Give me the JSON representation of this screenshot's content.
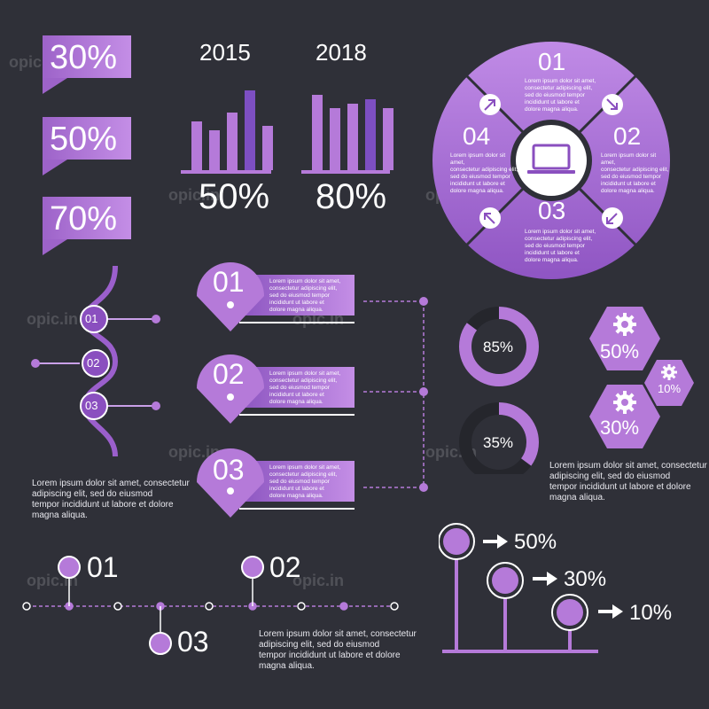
{
  "watermark": "opic.in",
  "tags": [
    "30%",
    "50%",
    "70%"
  ],
  "bars": {
    "left": {
      "year": "2015",
      "percent": "50%",
      "bar_heights": [
        0.55,
        0.45,
        0.65,
        0.9,
        0.5
      ]
    },
    "right": {
      "year": "2018",
      "percent": "80%",
      "bar_heights": [
        0.85,
        0.7,
        0.75,
        0.8,
        0.7
      ]
    }
  },
  "circle": {
    "center_icon": "laptop-icon",
    "segments": [
      {
        "num": "01",
        "text": [
          "Lorem ipsum dolor sit amet,",
          "consectetur adipiscing elit,",
          "sed do eiusmod tempor",
          "incididunt ut labore et",
          "dolore magna aliqua."
        ]
      },
      {
        "num": "02",
        "text": [
          "Lorem ipsum dolor sit amet,",
          "consectetur adipiscing elit,",
          "sed do eiusmod tempor",
          "incididunt ut labore et",
          "dolore magna aliqua."
        ]
      },
      {
        "num": "03",
        "text": [
          "Lorem ipsum dolor sit amet,",
          "consectetur adipiscing elit,",
          "sed do eiusmod tempor",
          "incididunt ut labore et",
          "dolore magna aliqua."
        ]
      },
      {
        "num": "04",
        "text": [
          "Lorem ipsum dolor sit amet,",
          "consectetur adipiscing elit,",
          "sed do eiusmod tempor",
          "incididunt ut labore et",
          "dolore magna aliqua."
        ]
      }
    ]
  },
  "snake": {
    "items": [
      "01",
      "02",
      "03"
    ],
    "text": [
      "Lorem ipsum dolor sit amet, consectetur",
      "adipiscing elit, sed do eiusmod",
      "tempor incididunt ut labore et dolore",
      "magna aliqua."
    ]
  },
  "pins": [
    {
      "num": "01",
      "text": [
        "Lorem ipsum dolor sit amet,",
        "consectetur adipiscing elit,",
        "sed do eiusmod tempor",
        "incididunt ut labore et",
        "dolore magna aliqua."
      ]
    },
    {
      "num": "02",
      "text": [
        "Lorem ipsum dolor sit amet,",
        "consectetur adipiscing elit,",
        "sed do eiusmod tempor",
        "incididunt ut labore et",
        "dolore magna aliqua."
      ]
    },
    {
      "num": "03",
      "text": [
        "Lorem ipsum dolor sit amet,",
        "consectetur adipiscing elit,",
        "sed do eiusmod tempor",
        "incididunt ut labore et",
        "dolore magna aliqua."
      ]
    }
  ],
  "donuts": [
    {
      "label": "85%",
      "fraction": 0.85
    },
    {
      "label": "35%",
      "fraction": 0.35
    }
  ],
  "hexes": [
    {
      "label": "50%",
      "icon": "gear-icon"
    },
    {
      "label": "10%",
      "icon": "gear-icon"
    },
    {
      "label": "30%",
      "icon": "gear-icon"
    }
  ],
  "hex_text": [
    "Lorem ipsum dolor sit amet, consectetur",
    "adipiscing elit, sed do eiusmod",
    "tempor incididunt ut labore et dolore",
    "magna aliqua."
  ],
  "timeline": {
    "labels": [
      "01",
      "02",
      "03"
    ],
    "text": [
      "Lorem ipsum dolor sit amet, consectetur",
      "adipiscing elit, sed do eiusmod",
      "tempor incididunt ut labore et dolore",
      "magna aliqua."
    ]
  },
  "lollipops": [
    {
      "label": "50%"
    },
    {
      "label": "30%"
    },
    {
      "label": "10%"
    }
  ],
  "colors": {
    "background": "#2f3038",
    "accent": "#b57ad9",
    "accent_dark": "#8a4fbf",
    "accent_light": "#d19cf0"
  }
}
